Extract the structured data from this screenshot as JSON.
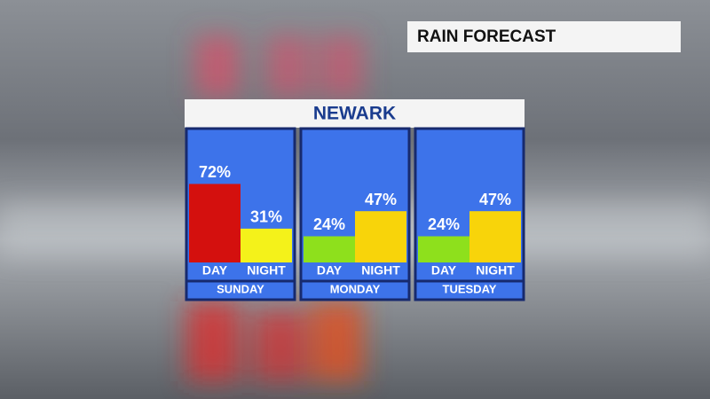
{
  "header": "RAIN FORECAST",
  "chart_data": {
    "type": "bar",
    "title": "NEWARK",
    "groups": [
      {
        "name": "SUNDAY",
        "categories": [
          "DAY",
          "NIGHT"
        ],
        "values": [
          72,
          31
        ],
        "value_labels": [
          "72%",
          "31%"
        ],
        "colors": [
          "#d4100e",
          "#f4f21a"
        ]
      },
      {
        "name": "MONDAY",
        "categories": [
          "DAY",
          "NIGHT"
        ],
        "values": [
          24,
          47
        ],
        "value_labels": [
          "24%",
          "47%"
        ],
        "colors": [
          "#8ee01c",
          "#f8d40a"
        ]
      },
      {
        "name": "TUESDAY",
        "categories": [
          "DAY",
          "NIGHT"
        ],
        "values": [
          24,
          47
        ],
        "value_labels": [
          "24%",
          "47%"
        ],
        "colors": [
          "#8ee01c",
          "#f8d40a"
        ]
      }
    ]
  }
}
